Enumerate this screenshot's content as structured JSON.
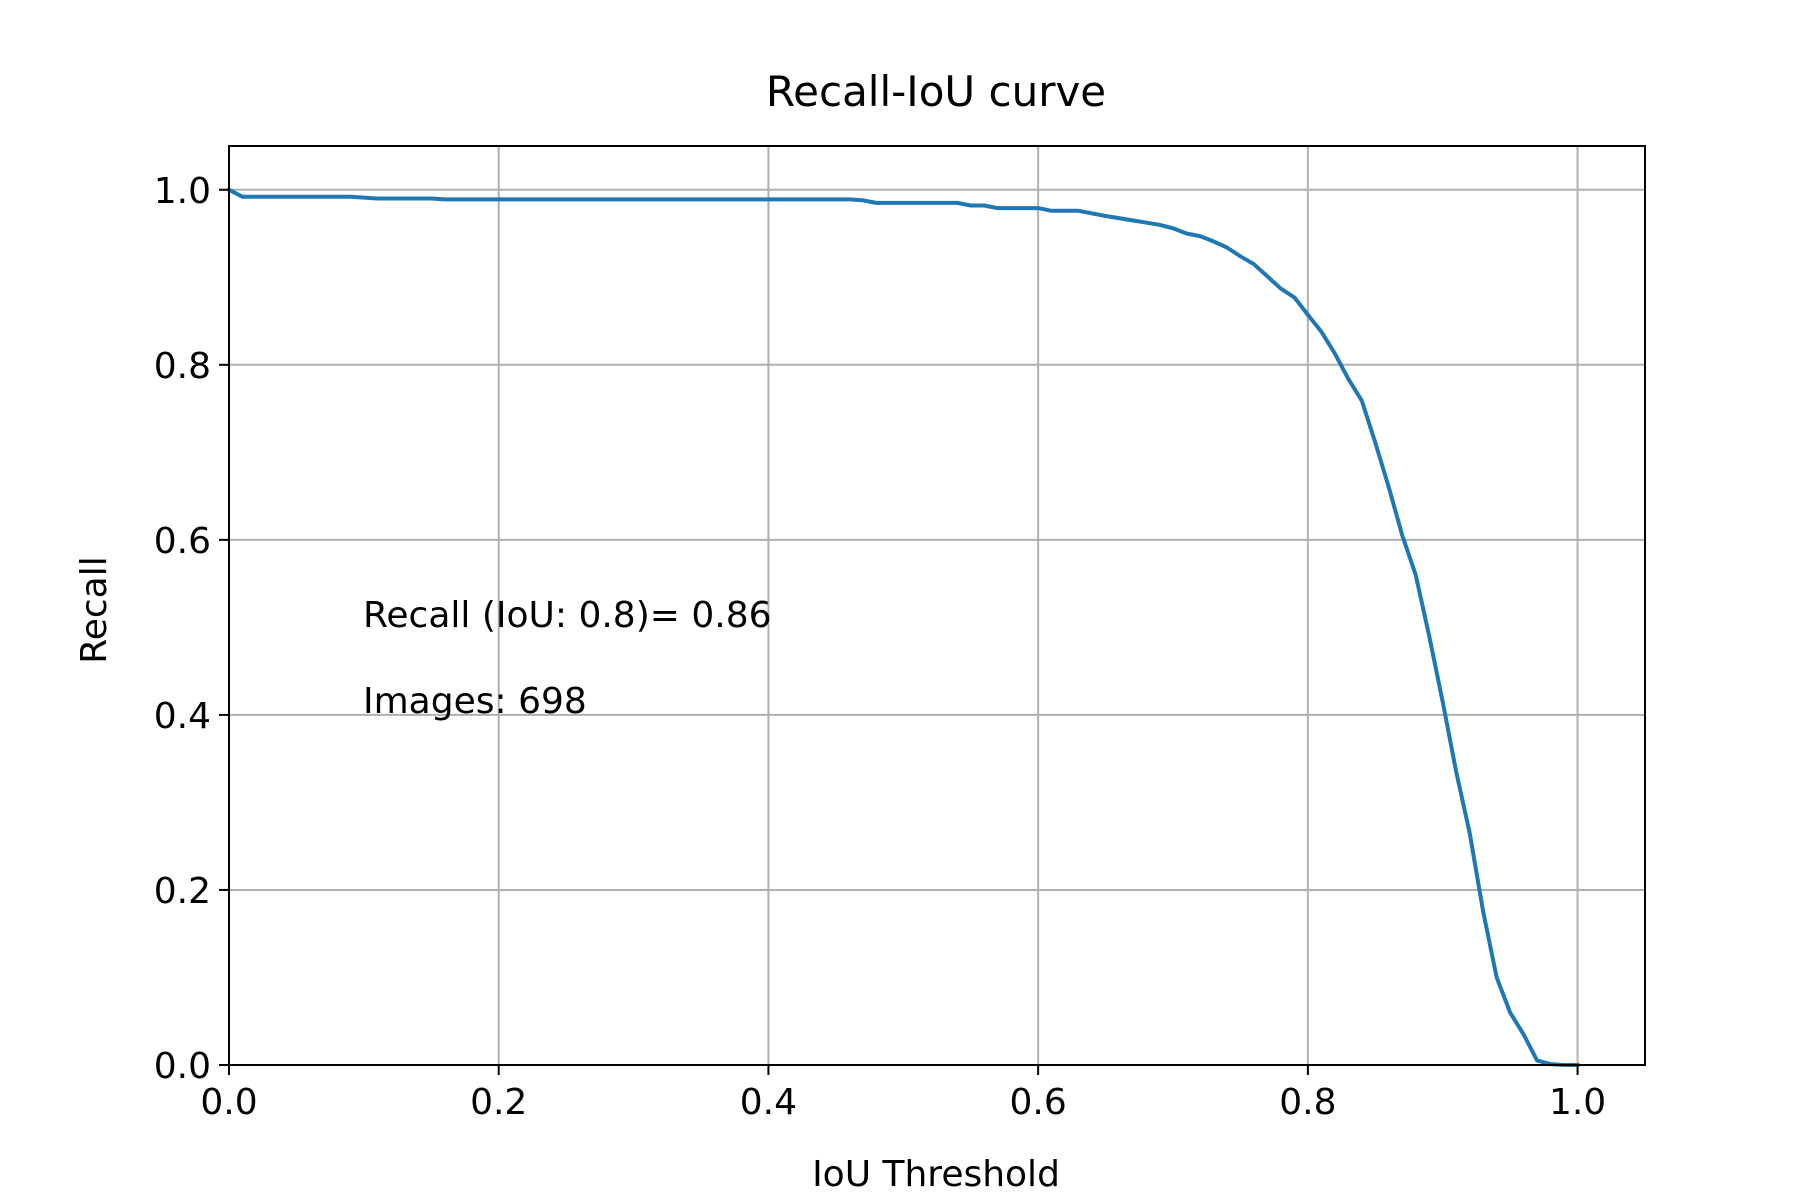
{
  "chart_data": {
    "type": "line",
    "title": "Recall-IoU curve",
    "xlabel": "IoU Threshold",
    "ylabel": "Recall",
    "xlim": [
      0,
      1.05
    ],
    "ylim": [
      0,
      1.05
    ],
    "grid": true,
    "xticks": [
      "0.0",
      "0.2",
      "0.4",
      "0.6",
      "0.8",
      "1.0"
    ],
    "yticks": [
      "0.0",
      "0.2",
      "0.4",
      "0.6",
      "0.8",
      "1.0"
    ],
    "annotations": [
      "Recall (IoU: 0.8)= 0.86",
      "Images: 698"
    ],
    "series": [
      {
        "color": "#1f77b4",
        "x": [
          0,
          0.01,
          0.02,
          0.05,
          0.09,
          0.1,
          0.11,
          0.15,
          0.16,
          0.2,
          0.3,
          0.4,
          0.46,
          0.47,
          0.48,
          0.5,
          0.54,
          0.55,
          0.56,
          0.57,
          0.6,
          0.61,
          0.63,
          0.65,
          0.67,
          0.69,
          0.7,
          0.71,
          0.72,
          0.73,
          0.74,
          0.75,
          0.76,
          0.77,
          0.78,
          0.79,
          0.8,
          0.81,
          0.82,
          0.83,
          0.84,
          0.85,
          0.86,
          0.87,
          0.88,
          0.89,
          0.9,
          0.91,
          0.92,
          0.93,
          0.94,
          0.95,
          0.96,
          0.97,
          0.98,
          0.99,
          1.0
        ],
        "y": [
          1.0,
          0.992,
          0.992,
          0.992,
          0.992,
          0.991,
          0.99,
          0.99,
          0.989,
          0.989,
          0.989,
          0.989,
          0.989,
          0.988,
          0.985,
          0.985,
          0.985,
          0.982,
          0.982,
          0.979,
          0.979,
          0.976,
          0.976,
          0.97,
          0.965,
          0.96,
          0.956,
          0.95,
          0.947,
          0.941,
          0.934,
          0.924,
          0.915,
          0.901,
          0.887,
          0.877,
          0.857,
          0.838,
          0.813,
          0.784,
          0.759,
          0.711,
          0.66,
          0.605,
          0.56,
          0.49,
          0.415,
          0.335,
          0.265,
          0.175,
          0.1,
          0.06,
          0.035,
          0.005,
          0.001,
          0.0,
          0.0
        ]
      }
    ]
  }
}
